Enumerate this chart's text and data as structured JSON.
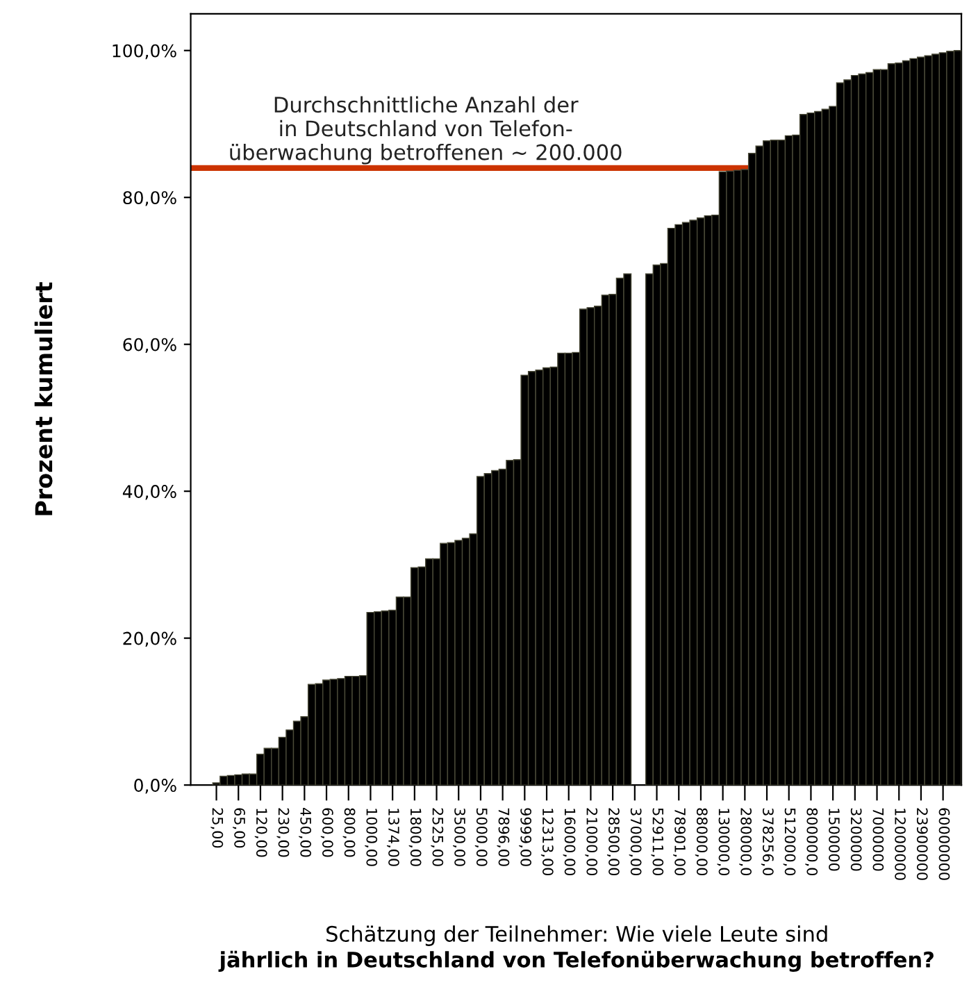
{
  "chart_data": {
    "type": "bar",
    "xlabel": "Schätzung der Teilnehmer: Wie viele Leute sind\njährlich in Deutschland von Telefonüberwachung betroffen?",
    "ylabel": "Prozent kumuliert",
    "categories": [
      null,
      null,
      null,
      "25,00",
      null,
      null,
      "65,00",
      null,
      null,
      "120,00",
      null,
      null,
      "230,00",
      null,
      null,
      "450,00",
      null,
      null,
      "600,00",
      null,
      null,
      "800,00",
      null,
      null,
      "1000,00",
      null,
      null,
      "1374,00",
      null,
      null,
      "1800,00",
      null,
      null,
      "2525,00",
      null,
      null,
      "3500,00",
      null,
      null,
      "5000,00",
      null,
      null,
      "7896,00",
      null,
      null,
      "9999,00",
      null,
      null,
      "12313,00",
      null,
      null,
      "16000,00",
      null,
      null,
      "21000,00",
      null,
      null,
      "28500,00",
      null,
      null,
      "37000,00",
      null,
      null,
      "52911,00",
      null,
      null,
      "78901,00",
      null,
      null,
      "88000,00",
      null,
      null,
      "130000,0",
      null,
      null,
      "280000,0",
      null,
      null,
      "378256,0",
      null,
      null,
      "512000,0",
      null,
      null,
      "800000,0",
      null,
      null,
      "1500000",
      null,
      null,
      "3200000",
      null,
      null,
      "7000000",
      null,
      null,
      "12000000",
      null,
      null,
      "23900000",
      null,
      null,
      "60000000",
      null,
      null
    ],
    "values": [
      null,
      null,
      null,
      0.3,
      1.2,
      1.3,
      1.4,
      1.5,
      1.5,
      4.2,
      5.0,
      5.0,
      6.5,
      7.5,
      8.7,
      9.3,
      13.7,
      13.8,
      14.3,
      14.4,
      14.5,
      14.8,
      14.8,
      14.9,
      23.5,
      23.6,
      23.7,
      23.8,
      25.6,
      25.6,
      29.6,
      29.7,
      30.8,
      30.8,
      32.9,
      33.0,
      33.3,
      33.6,
      34.2,
      42.0,
      42.4,
      42.8,
      43.0,
      44.2,
      44.3,
      55.8,
      56.3,
      56.5,
      56.8,
      56.9,
      58.8,
      58.8,
      58.9,
      64.8,
      65.0,
      65.2,
      66.7,
      66.8,
      69.0,
      69.6,
      null,
      null,
      69.6,
      70.8,
      71.0,
      75.8,
      76.3,
      76.6,
      76.9,
      77.2,
      77.5,
      77.6,
      83.5,
      83.6,
      83.7,
      83.8,
      86.0,
      87.0,
      87.7,
      87.8,
      87.8,
      88.4,
      88.5,
      91.3,
      91.5,
      91.7,
      92.0,
      92.4,
      95.6,
      96.0,
      96.6,
      96.8,
      97.0,
      97.4,
      97.4,
      98.2,
      98.3,
      98.6,
      98.9,
      99.1,
      99.3,
      99.5,
      99.7,
      99.9,
      100.0
    ],
    "color": "#000000",
    "ylim": [
      0,
      105
    ],
    "yticks": [
      {
        "value": 0,
        "label": "0,0%"
      },
      {
        "value": 20,
        "label": "20,0%"
      },
      {
        "value": 40,
        "label": "40,0%"
      },
      {
        "value": 60,
        "label": "60,0%"
      },
      {
        "value": 80,
        "label": "80,0%"
      },
      {
        "value": 100,
        "label": "100,0%"
      }
    ],
    "ref_lines": [
      {
        "axis": "y",
        "value": 84,
        "label": "Durchschnittliche Anzahl der\nin Deutschland von Telefon-\nüberwachung betroffenen ~ 200.000",
        "color": "#cc3300"
      }
    ],
    "grid": false,
    "legend": false
  }
}
